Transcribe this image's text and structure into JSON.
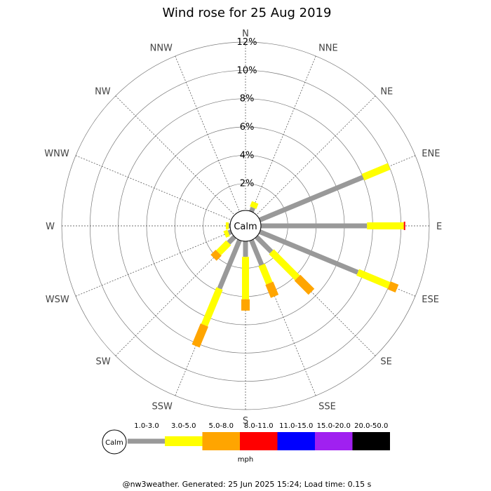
{
  "chart_data": {
    "type": "wind-rose",
    "title": "Wind rose for 25 Aug 2019",
    "center_label": "Calm",
    "directions": [
      "N",
      "NNE",
      "NE",
      "ENE",
      "E",
      "ESE",
      "SE",
      "SSE",
      "S",
      "SSW",
      "SW",
      "WSW",
      "W",
      "WNW",
      "NW",
      "NNW"
    ],
    "radial_ticks": [
      "2%",
      "4%",
      "6%",
      "8%",
      "10%",
      "12%"
    ],
    "radial_values": [
      2,
      4,
      6,
      8,
      10,
      12
    ],
    "rmax": 12,
    "speed_bins": [
      "1.0-3.0",
      "3.0-5.0",
      "5.0-8.0",
      "8.0-11.0",
      "11.0-15.0",
      "15.0-20.0",
      "20.0-50.0"
    ],
    "bin_colors": [
      "#999999",
      "#ffff00",
      "#ffa500",
      "#ff0000",
      "#0000ff",
      "#a020f0",
      "#000000"
    ],
    "units": "mph",
    "series": [
      {
        "direction": "N",
        "values": [
          0.0,
          0.0,
          0.0,
          0,
          0,
          0,
          0
        ]
      },
      {
        "direction": "NNE",
        "values": [
          0.4,
          0.4,
          0.0,
          0,
          0,
          0,
          0
        ]
      },
      {
        "direction": "NE",
        "values": [
          0.0,
          0.0,
          0.0,
          0,
          0,
          0,
          0
        ]
      },
      {
        "direction": "ENE",
        "values": [
          8.0,
          2.0,
          0.0,
          0,
          0,
          0,
          0
        ]
      },
      {
        "direction": "E",
        "values": [
          7.6,
          2.6,
          0.0,
          0.1,
          0,
          0,
          0
        ]
      },
      {
        "direction": "ESE",
        "values": [
          7.6,
          2.4,
          0.6,
          0,
          0,
          0,
          0
        ]
      },
      {
        "direction": "SE",
        "values": [
          1.6,
          2.6,
          1.4,
          0,
          0,
          0,
          0
        ]
      },
      {
        "direction": "SSE",
        "values": [
          2.0,
          1.4,
          1.0,
          0,
          0,
          0,
          0
        ]
      },
      {
        "direction": "S",
        "values": [
          1.2,
          3.0,
          0.8,
          0,
          0,
          0,
          0
        ]
      },
      {
        "direction": "SSW",
        "values": [
          3.8,
          2.8,
          1.6,
          0,
          0,
          0,
          0
        ]
      },
      {
        "direction": "SW",
        "values": [
          0.7,
          1.0,
          0.5,
          0,
          0,
          0,
          0
        ]
      },
      {
        "direction": "WSW",
        "values": [
          0.3,
          0.3,
          0.0,
          0,
          0,
          0,
          0
        ]
      },
      {
        "direction": "W",
        "values": [
          0.2,
          0.2,
          0.0,
          0,
          0,
          0,
          0
        ]
      },
      {
        "direction": "WNW",
        "values": [
          0.0,
          0.0,
          0.0,
          0,
          0,
          0,
          0
        ]
      },
      {
        "direction": "NW",
        "values": [
          0.0,
          0.0,
          0.0,
          0,
          0,
          0,
          0
        ]
      },
      {
        "direction": "NNW",
        "values": [
          0.0,
          0.0,
          0.0,
          0,
          0,
          0,
          0
        ]
      }
    ],
    "grid": true,
    "legend_position": "bottom"
  },
  "legend": {
    "calm_label": "Calm",
    "units_label": "mph"
  },
  "footer": "@nw3weather. Generated: 25 Jun 2025 15:24; Load time: 0.15 s"
}
